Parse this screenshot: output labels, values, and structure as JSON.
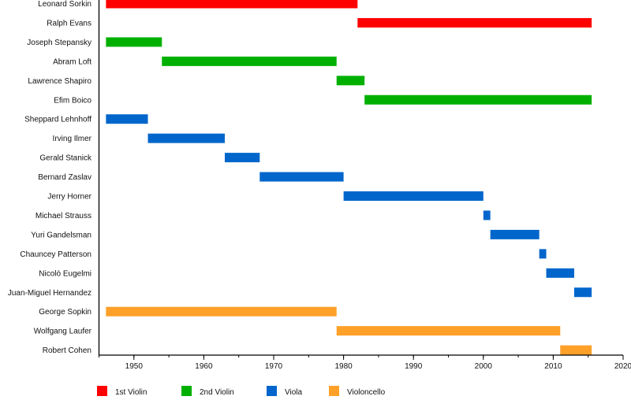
{
  "chart_data": {
    "type": "timeline",
    "title": "",
    "xlim": [
      1945,
      2020
    ],
    "xticks": [
      1950,
      1960,
      1970,
      1980,
      1990,
      2000,
      2010,
      2020
    ],
    "minor_tick_step": 5,
    "grid": false,
    "legend_position": "bottom-left",
    "roles": [
      {
        "name": "1st Violin",
        "color": "#ff0000"
      },
      {
        "name": "2nd Violin",
        "color": "#00b000"
      },
      {
        "name": "Viola",
        "color": "#0066cc"
      },
      {
        "name": "Violoncello",
        "color": "#ffa028"
      }
    ],
    "members": [
      {
        "name": "Leonard Sorkin",
        "role": 0,
        "start": 1946,
        "end": 1982
      },
      {
        "name": "Ralph Evans",
        "role": 0,
        "start": 1982,
        "end": 2015.5
      },
      {
        "name": "Joseph Stepansky",
        "role": 1,
        "start": 1946,
        "end": 1954
      },
      {
        "name": "Abram Loft",
        "role": 1,
        "start": 1954,
        "end": 1979
      },
      {
        "name": "Lawrence Shapiro",
        "role": 1,
        "start": 1979,
        "end": 1983
      },
      {
        "name": "Efim Boico",
        "role": 1,
        "start": 1983,
        "end": 2015.5
      },
      {
        "name": "Sheppard Lehnhoff",
        "role": 2,
        "start": 1946,
        "end": 1952
      },
      {
        "name": "Irving Ilmer",
        "role": 2,
        "start": 1952,
        "end": 1963
      },
      {
        "name": "Gerald Stanick",
        "role": 2,
        "start": 1963,
        "end": 1968
      },
      {
        "name": "Bernard Zaslav",
        "role": 2,
        "start": 1968,
        "end": 1980
      },
      {
        "name": "Jerry Horner",
        "role": 2,
        "start": 1980,
        "end": 2000
      },
      {
        "name": "Michael Strauss",
        "role": 2,
        "start": 2000,
        "end": 2001
      },
      {
        "name": "Yuri Gandelsman",
        "role": 2,
        "start": 2001,
        "end": 2008
      },
      {
        "name": "Chauncey Patterson",
        "role": 2,
        "start": 2008,
        "end": 2009
      },
      {
        "name": "Nicolò Eugelmi",
        "role": 2,
        "start": 2009,
        "end": 2013
      },
      {
        "name": "Juan-Miguel Hernandez",
        "role": 2,
        "start": 2013,
        "end": 2015.5
      },
      {
        "name": "George Sopkin",
        "role": 3,
        "start": 1946,
        "end": 1979
      },
      {
        "name": "Wolfgang Laufer",
        "role": 3,
        "start": 1979,
        "end": 2011
      },
      {
        "name": "Robert Cohen",
        "role": 3,
        "start": 2011,
        "end": 2015.5
      }
    ]
  }
}
